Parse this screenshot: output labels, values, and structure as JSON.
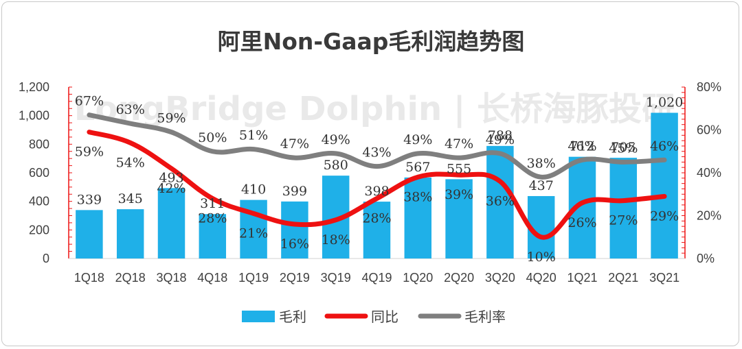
{
  "chart_data": {
    "type": "bar",
    "title": "阿里Non-Gaap毛利润趋势图",
    "watermark": "LongBridge Dolphin | 长桥海豚投研",
    "categories": [
      "1Q18",
      "2Q18",
      "3Q18",
      "4Q18",
      "1Q19",
      "2Q19",
      "3Q19",
      "4Q19",
      "1Q20",
      "2Q20",
      "3Q20",
      "4Q20",
      "1Q21",
      "2Q21",
      "3Q21"
    ],
    "series": [
      {
        "name": "毛利",
        "type": "bar",
        "axis": "left",
        "color": "#1fb0e8",
        "values": [
          339,
          345,
          493,
          311,
          410,
          399,
          580,
          398,
          567,
          555,
          788,
          437,
          712,
          705,
          1020
        ],
        "labels": [
          "339",
          "345",
          "493",
          "311",
          "410",
          "399",
          "580",
          "398",
          "567",
          "555",
          "788",
          "437",
          "712",
          "705",
          "1,020"
        ]
      },
      {
        "name": "同比",
        "type": "line",
        "axis": "right",
        "color": "#ee1111",
        "values": [
          59,
          54,
          42,
          28,
          21,
          16,
          18,
          28,
          38,
          39,
          36,
          10,
          26,
          27,
          29
        ],
        "labels": [
          "59%",
          "54%",
          "42%",
          "28%",
          "21%",
          "16%",
          "18%",
          "28%",
          "38%",
          "39%",
          "36%",
          "10%",
          "26%",
          "27%",
          "29%"
        ]
      },
      {
        "name": "毛利率",
        "type": "line",
        "axis": "right",
        "color": "#7f7f7f",
        "values": [
          67,
          63,
          59,
          50,
          51,
          47,
          49,
          43,
          49,
          47,
          49,
          38,
          46,
          45,
          46
        ],
        "labels": [
          "67%",
          "63%",
          "59%",
          "50%",
          "51%",
          "47%",
          "49%",
          "43%",
          "49%",
          "47%",
          "49%",
          "38%",
          "46%",
          "45%",
          "46%"
        ]
      }
    ],
    "y_left": {
      "min": 0,
      "max": 1200,
      "ticks": [
        "0",
        "200",
        "400",
        "600",
        "800",
        "1,000",
        "1,200"
      ]
    },
    "y_right": {
      "min": 0,
      "max": 80,
      "ticks": [
        "0%",
        "20%",
        "40%",
        "60%",
        "80%"
      ]
    },
    "legend_position": "bottom",
    "grid": false
  }
}
